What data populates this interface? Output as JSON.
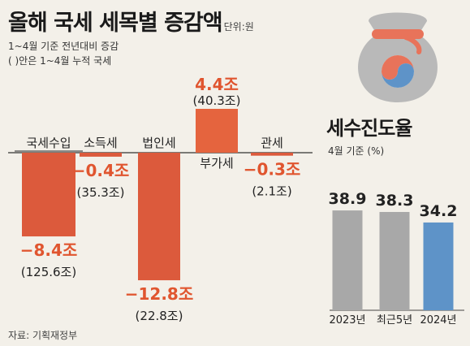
{
  "header": {
    "title": "올해 국세 세목별 증감액",
    "unit": "단위:원",
    "subtitle1": "1~4월 기준 전년대비 증감",
    "subtitle2": "( )안은 1~4월 누적 국세"
  },
  "source": "자료: 기획재정부",
  "colors": {
    "negative": "#dc5a3c",
    "negative_label": "#e0552f",
    "positive": "#e5643e",
    "gray_bar": "#a8a8a8",
    "blue_bar": "#5e93c8",
    "bag": "#b9b9b9",
    "ribbon": "#e8735a"
  },
  "chart_data": [
    {
      "type": "bar",
      "categories": [
        "국세수입",
        "소득세",
        "법인세",
        "부가세",
        "관세"
      ],
      "values": [
        -8.4,
        -0.4,
        -12.8,
        4.4,
        -0.3
      ],
      "value_labels": [
        "−8.4조",
        "−0.4조",
        "−12.8조",
        "4.4조",
        "−0.3조"
      ],
      "cumulative_labels": [
        "(125.6조)",
        "(35.3조)",
        "(22.8조)",
        "(40.3조)",
        "(2.1조)"
      ],
      "ylabel": "",
      "ylim": [
        -12.8,
        4.4
      ]
    },
    {
      "type": "bar",
      "title": "세수진도율",
      "subtitle": "4월 기준 (%)",
      "categories": [
        "2023년",
        "최근5년",
        "2024년"
      ],
      "values": [
        38.9,
        38.3,
        34.2
      ],
      "value_labels": [
        "38.9",
        "38.3",
        "34.2"
      ],
      "ylim": [
        0,
        38.9
      ]
    }
  ],
  "icons": {
    "bag": "money-bag-icon"
  }
}
